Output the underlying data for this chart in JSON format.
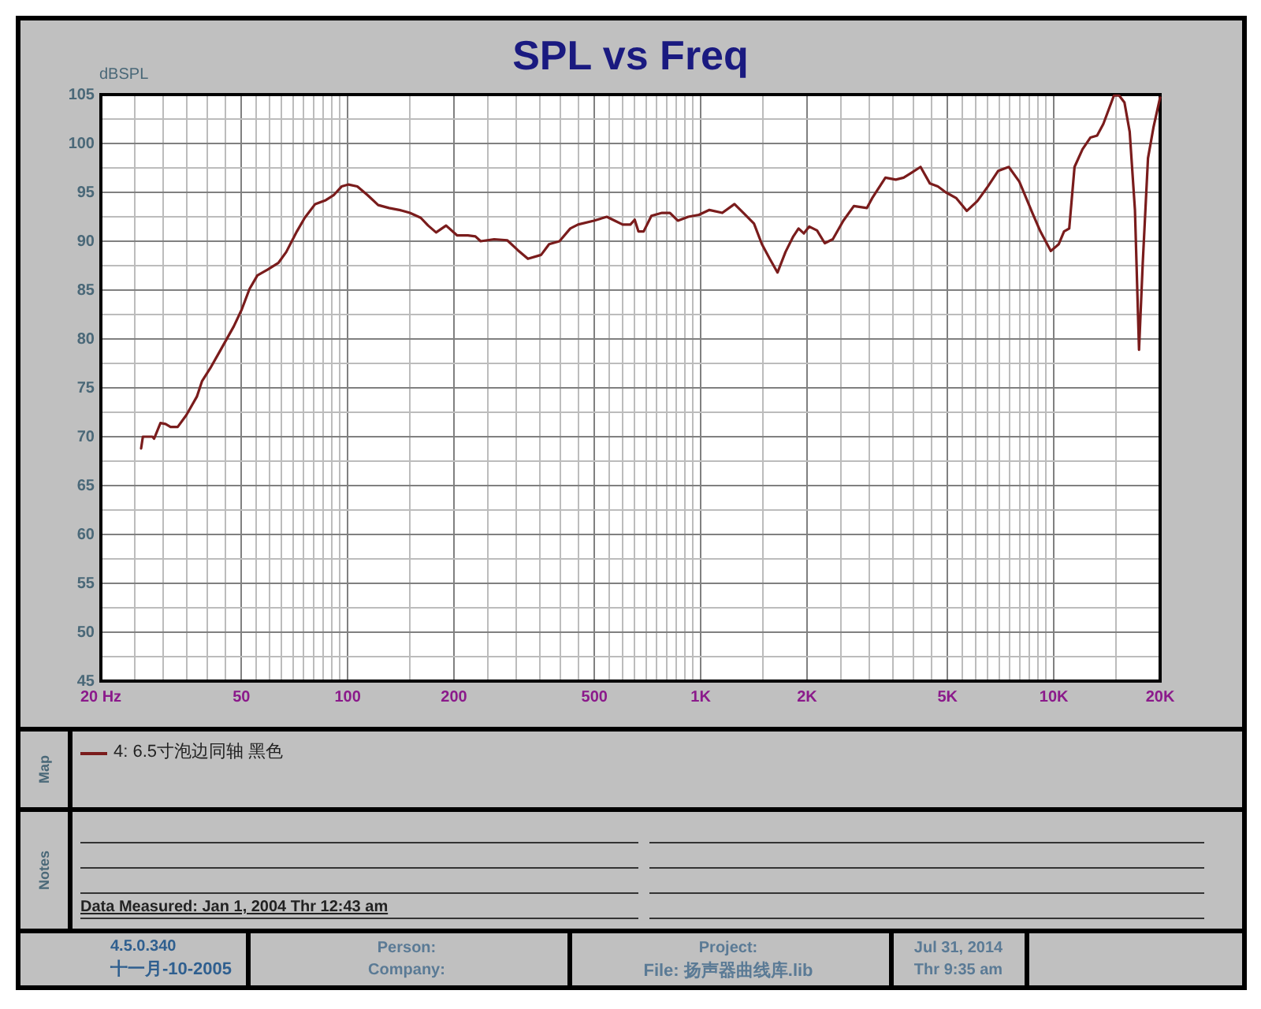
{
  "chart_data": {
    "type": "line",
    "title": "SPL vs Freq",
    "ylabel": "dBSPL",
    "log": "x",
    "grid": true,
    "legend": "bottom left",
    "marker": "none",
    "xlim": [
      20,
      20000
    ],
    "ylim": [
      45,
      105
    ],
    "xticks": [
      {
        "value": 20,
        "label": "20 Hz"
      },
      {
        "value": 25,
        "label": null
      },
      {
        "value": 30,
        "label": null
      },
      {
        "value": 35,
        "label": null
      },
      {
        "value": 40,
        "label": null
      },
      {
        "value": 45,
        "label": null
      },
      50,
      {
        "value": 55,
        "label": null
      },
      {
        "value": 60,
        "label": null
      },
      {
        "value": 65,
        "label": null
      },
      {
        "value": 70,
        "label": null
      },
      {
        "value": 75,
        "label": null
      },
      {
        "value": 80,
        "label": null
      },
      {
        "value": 85,
        "label": null
      },
      {
        "value": 90,
        "label": null
      },
      {
        "value": 95,
        "label": null
      },
      100,
      {
        "value": 150,
        "label": null
      },
      200,
      {
        "value": 250,
        "label": null
      },
      {
        "value": 300,
        "label": null
      },
      {
        "value": 350,
        "label": null
      },
      {
        "value": 400,
        "label": null
      },
      {
        "value": 450,
        "label": null
      },
      500,
      {
        "value": 550,
        "label": null
      },
      {
        "value": 600,
        "label": null
      },
      {
        "value": 650,
        "label": null
      },
      {
        "value": 700,
        "label": null
      },
      {
        "value": 750,
        "label": null
      },
      {
        "value": 800,
        "label": null
      },
      {
        "value": 850,
        "label": null
      },
      {
        "value": 900,
        "label": null
      },
      {
        "value": 950,
        "label": null
      },
      {
        "value": 1000,
        "label": "1K"
      },
      {
        "value": 1500,
        "label": null
      },
      {
        "value": 2000,
        "label": "2K"
      },
      {
        "value": 2500,
        "label": null
      },
      {
        "value": 3000,
        "label": null
      },
      {
        "value": 3500,
        "label": null
      },
      {
        "value": 4000,
        "label": null
      },
      {
        "value": 4500,
        "label": null
      },
      {
        "value": 5000,
        "label": "5K"
      },
      {
        "value": 5500,
        "label": null
      },
      {
        "value": 6000,
        "label": null
      },
      {
        "value": 6500,
        "label": null
      },
      {
        "value": 7000,
        "label": null
      },
      {
        "value": 7500,
        "label": null
      },
      {
        "value": 8000,
        "label": null
      },
      {
        "value": 8500,
        "label": null
      },
      {
        "value": 9000,
        "label": null
      },
      {
        "value": 9500,
        "label": null
      },
      {
        "value": 10000,
        "label": "10K"
      },
      {
        "value": 15000,
        "label": null
      },
      {
        "value": 20000,
        "label": "20K"
      }
    ],
    "yticks": [
      45,
      {
        "value": 47.5,
        "label": null
      },
      50,
      {
        "value": 52.5,
        "label": null
      },
      55,
      {
        "value": 57.5,
        "label": null
      },
      60,
      {
        "value": 62.5,
        "label": null
      },
      65,
      {
        "value": 67.5,
        "label": null
      },
      70,
      {
        "value": 72.5,
        "label": null
      },
      75,
      {
        "value": 77.5,
        "label": null
      },
      80,
      {
        "value": 82.5,
        "label": null
      },
      85,
      {
        "value": 87.5,
        "label": null
      },
      90,
      {
        "value": 92.5,
        "label": null
      },
      95,
      {
        "value": 97.5,
        "label": null
      },
      100,
      {
        "value": 102.5,
        "label": null
      },
      105
    ],
    "x": [
      26,
      26.3,
      28,
      28.3,
      29.5,
      30.5,
      31.5,
      33,
      34.9,
      37.4,
      38.7,
      40.8,
      43.7,
      47.6,
      50.1,
      52.7,
      55.5,
      59.4,
      63.7,
      67,
      71.8,
      75.6,
      80.9,
      86.7,
      91.2,
      96.1,
      100.6,
      106.5,
      114,
      122,
      131,
      140,
      150,
      161,
      169,
      178,
      190,
      204,
      219,
      230,
      238,
      260,
      283,
      303,
      324,
      353,
      372,
      398,
      427,
      449,
      498,
      542,
      571,
      601,
      632,
      650,
      666,
      689,
      725,
      777,
      818,
      861,
      922,
      988,
      1058,
      1151,
      1246,
      1321,
      1415,
      1490,
      1568,
      1650,
      1738,
      1829,
      1892,
      1959,
      2028,
      2135,
      2245,
      2366,
      2534,
      2714,
      2956,
      3058,
      3334,
      3567,
      3755,
      3953,
      4193,
      4458,
      4695,
      4944,
      5296,
      5667,
      6071,
      6502,
      6959,
      7454,
      7984,
      8694,
      9160,
      9808,
      10328,
      10688,
      11056,
      11446,
      12055,
      12690,
      13260,
      13810,
      14795,
      15315,
      15850,
      16400,
      16972,
      17430,
      17860,
      18480,
      19140,
      20000
    ],
    "series": [
      {
        "name": "4: 6.5寸泡边同轴 黑色",
        "color": "#7a1c1c",
        "values": [
          68.8,
          70.0,
          70.0,
          69.8,
          71.4,
          71.3,
          71.0,
          71.0,
          72.2,
          74.1,
          75.7,
          77.0,
          78.9,
          81.3,
          83.0,
          85.1,
          86.5,
          87.1,
          87.8,
          88.9,
          91.0,
          92.4,
          93.8,
          94.2,
          94.7,
          95.6,
          95.8,
          95.6,
          94.7,
          93.7,
          93.4,
          93.2,
          92.9,
          92.4,
          91.6,
          90.9,
          91.6,
          90.6,
          90.6,
          90.5,
          90.0,
          90.2,
          90.1,
          89.1,
          88.2,
          88.6,
          89.7,
          90.0,
          91.3,
          91.7,
          92.1,
          92.5,
          92.1,
          91.7,
          91.7,
          92.2,
          91.0,
          91.0,
          92.6,
          92.9,
          92.9,
          92.1,
          92.5,
          92.7,
          93.2,
          92.9,
          93.8,
          92.9,
          91.8,
          89.7,
          88.2,
          86.8,
          88.9,
          90.5,
          91.3,
          90.8,
          91.5,
          91.1,
          89.8,
          90.2,
          92.1,
          93.6,
          93.4,
          94.4,
          96.5,
          96.3,
          96.5,
          97.0,
          97.6,
          95.9,
          95.6,
          95.0,
          94.4,
          93.1,
          94.1,
          95.6,
          97.2,
          97.6,
          96.1,
          92.9,
          91.0,
          89.0,
          89.7,
          91.0,
          91.3,
          97.6,
          99.4,
          100.6,
          100.8,
          102.0,
          104.9,
          104.9,
          104.2,
          101.2,
          93.2,
          78.9,
          87.8,
          98.5,
          101.6,
          104.7
        ]
      }
    ],
    "annotations": [
      "Map",
      "Notes",
      "Data Measured: Jan 1, 2004 Thr 12:43 am",
      "4.5.0.340",
      "十一月-10-2005",
      "Person:",
      "Company:",
      "Project:",
      "File: 扬声器曲线库.lib",
      "Jul 31, 2014",
      "Thr 9:35 am"
    ]
  }
}
